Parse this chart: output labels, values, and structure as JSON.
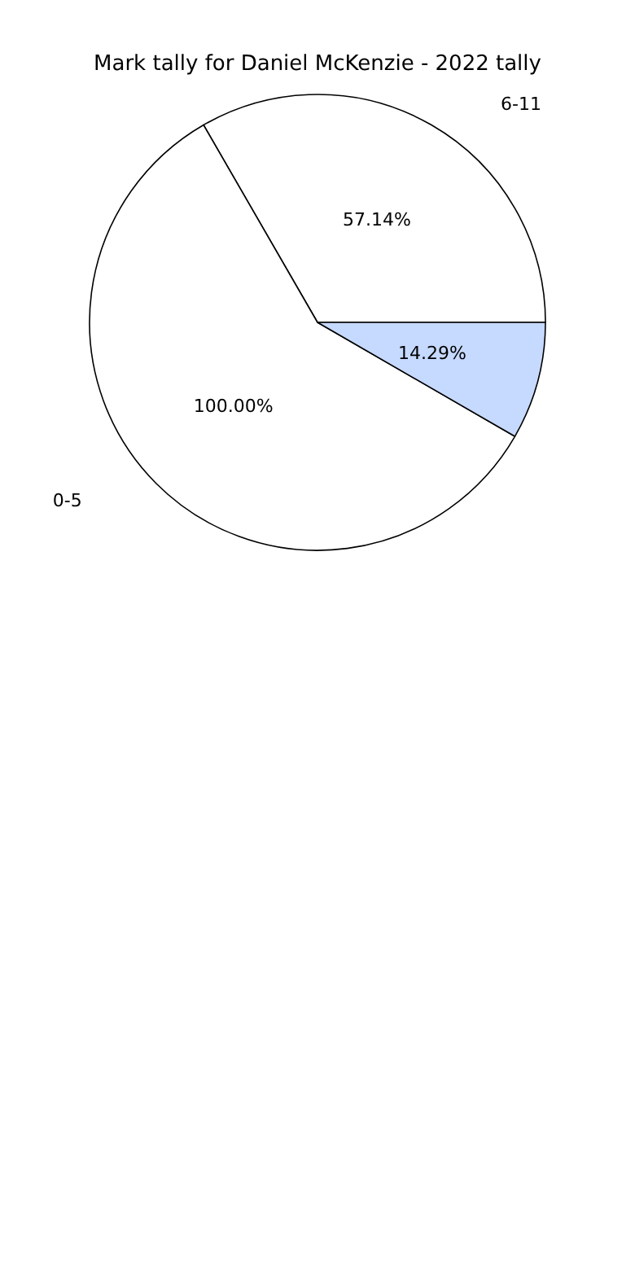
{
  "chart_data": {
    "type": "pie",
    "title": "Mark tally for Daniel McKenzie - 2022 tally",
    "categories": [
      "6-11",
      "0-5",
      null
    ],
    "values": [
      57.14,
      100,
      14.29
    ],
    "value_labels": [
      "57.14%",
      "100.00%",
      "14.29%"
    ],
    "colors": [
      "#ffffff",
      "#ffffff",
      "#c6d9ff"
    ],
    "legend": false
  }
}
